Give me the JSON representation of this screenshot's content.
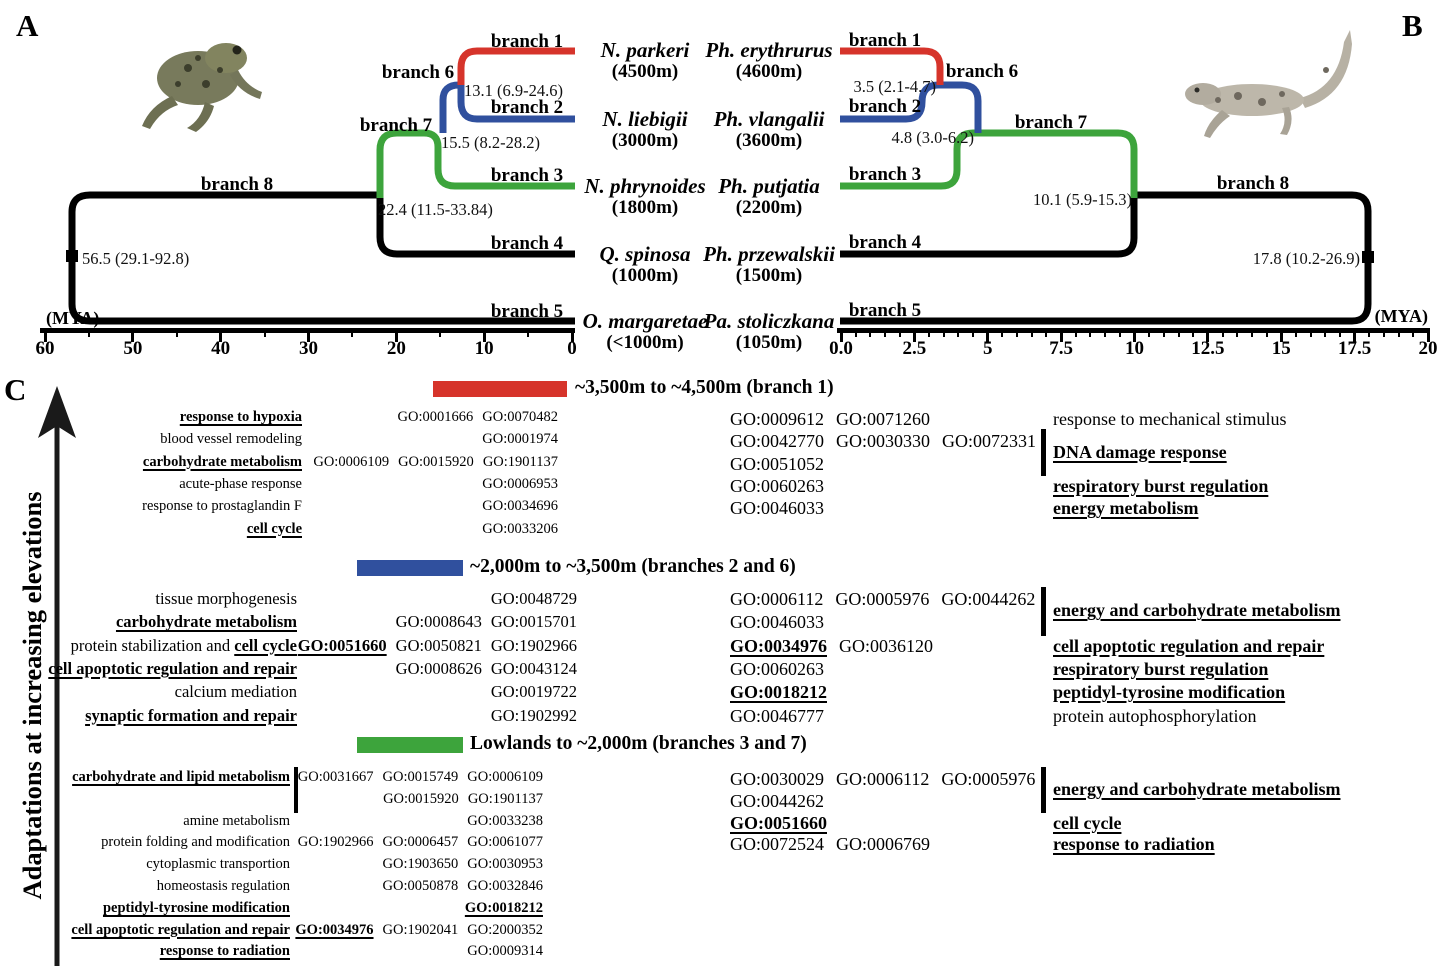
{
  "colors": {
    "red": "#d6342b",
    "blue": "#30509e",
    "green": "#3da43c",
    "black": "#000000"
  },
  "panelA": {
    "label": "A",
    "animal": "frog-illustration",
    "species": [
      {
        "name": "N. parkeri",
        "elevation": "(4500m)"
      },
      {
        "name": "N. liebigii",
        "elevation": "(3000m)"
      },
      {
        "name": "N. phrynoides",
        "elevation": "(1800m)"
      },
      {
        "name": "Q. spinosa",
        "elevation": "(1000m)"
      },
      {
        "name": "O. margaretae",
        "elevation": "(<1000m)"
      }
    ],
    "branches": [
      "branch 1",
      "branch 2",
      "branch 3",
      "branch 4",
      "branch 5",
      "branch 6",
      "branch 7",
      "branch 8"
    ],
    "node_ages": [
      "13.1 (6.9-24.6)",
      "15.5 (8.2-28.2)",
      "22.4 (11.5-33.84)",
      "56.5 (29.1-92.8)"
    ],
    "axis": {
      "unit": "(MYA)",
      "ticks": [
        "60",
        "50",
        "40",
        "30",
        "20",
        "10",
        "0"
      ]
    }
  },
  "panelB": {
    "label": "B",
    "animal": "lizard-illustration",
    "species": [
      {
        "name": "Ph. erythrurus",
        "elevation": "(4600m)"
      },
      {
        "name": "Ph. vlangalii",
        "elevation": "(3600m)"
      },
      {
        "name": "Ph. putjatia",
        "elevation": "(2200m)"
      },
      {
        "name": "Ph. przewalskii",
        "elevation": "(1500m)"
      },
      {
        "name": "Pa. stoliczkana",
        "elevation": "(1050m)"
      }
    ],
    "branches": [
      "branch 1",
      "branch 2",
      "branch 3",
      "branch 4",
      "branch 5",
      "branch 6",
      "branch 7",
      "branch 8"
    ],
    "node_ages": [
      "3.5 (2.1-4.7)",
      "4.8 (3.0-6.2)",
      "10.1 (5.9-15.3)",
      "17.8 (10.2-26.9)"
    ],
    "axis": {
      "unit": "(MYA)",
      "ticks": [
        "0.0",
        "2.5",
        "5",
        "7.5",
        "10",
        "12.5",
        "15",
        "17.5",
        "20"
      ]
    }
  },
  "panelC": {
    "label": "C",
    "y_axis_label": "Adaptations at increasing elevations",
    "sections": [
      {
        "color": "#d6342b",
        "title": "~3,500m to ~4,500m (branch 1)",
        "right_bracket": {
          "label": [
            {
              "t": "DNA damage response",
              "e": 1
            }
          ],
          "start_row": 1,
          "span": 2
        },
        "rows": [
          {
            "label": [
              {
                "t": "response to hypoxia",
                "e": 1
              }
            ],
            "go_left": [
              {
                "t": "GO:0001666",
                "e": 0
              },
              {
                "t": "GO:0070482",
                "e": 0
              }
            ],
            "go_right": [
              {
                "t": "GO:0009612",
                "e": 0
              },
              {
                "t": "GO:0071260",
                "e": 0
              }
            ],
            "right_label": [
              {
                "t": "response to mechanical stimulus",
                "e": 0
              }
            ]
          },
          {
            "label": [
              {
                "t": "blood vessel remodeling",
                "e": 0
              }
            ],
            "go_left": [
              {
                "t": "GO:0001974",
                "e": 0
              }
            ],
            "go_right": [
              {
                "t": "GO:0042770",
                "e": 0
              },
              {
                "t": "GO:0030330",
                "e": 0
              },
              {
                "t": "GO:0072331",
                "e": 0
              }
            ]
          },
          {
            "label": [
              {
                "t": "carbohydrate metabolism",
                "e": 1
              }
            ],
            "go_left": [
              {
                "t": "GO:0006109",
                "e": 0
              },
              {
                "t": "GO:0015920",
                "e": 0
              },
              {
                "t": "GO:1901137",
                "e": 0
              }
            ],
            "go_right": [
              {
                "t": "GO:0051052",
                "e": 0
              }
            ]
          },
          {
            "label": [
              {
                "t": "acute-phase response",
                "e": 0
              }
            ],
            "go_left": [
              {
                "t": "GO:0006953",
                "e": 0
              }
            ],
            "go_right": [
              {
                "t": "GO:0060263",
                "e": 0
              }
            ],
            "right_label": [
              {
                "t": "respiratory burst regulation",
                "e": 1
              }
            ]
          },
          {
            "label": [
              {
                "t": "response to prostaglandin F",
                "e": 0
              }
            ],
            "go_left": [
              {
                "t": "GO:0034696",
                "e": 0
              }
            ],
            "go_right": [
              {
                "t": "GO:0046033",
                "e": 0
              }
            ],
            "right_label": [
              {
                "t": "energy metabolism",
                "e": 1
              }
            ]
          },
          {
            "label": [
              {
                "t": "cell cycle",
                "e": 1
              }
            ],
            "go_left": [
              {
                "t": "GO:0033206",
                "e": 0
              }
            ]
          }
        ]
      },
      {
        "color": "#30509e",
        "title": "~2,000m to ~3,500m (branches 2 and 6)",
        "right_bracket": {
          "label": [
            {
              "t": "energy and carbohydrate metabolism",
              "e": 1
            }
          ],
          "start_row": 0,
          "span": 2
        },
        "rows": [
          {
            "label": [
              {
                "t": "tissue morphogenesis",
                "e": 0
              }
            ],
            "go_left": [
              {
                "t": "GO:0048729",
                "e": 0
              }
            ],
            "go_right": [
              {
                "t": "GO:0006112",
                "e": 0
              },
              {
                "t": "GO:0005976",
                "e": 0
              },
              {
                "t": "GO:0044262",
                "e": 0
              }
            ]
          },
          {
            "label": [
              {
                "t": "carbohydrate metabolism",
                "e": 1
              }
            ],
            "go_left": [
              {
                "t": "GO:0008643",
                "e": 0
              },
              {
                "t": "GO:0015701",
                "e": 0
              }
            ],
            "go_right": [
              {
                "t": "GO:0046033",
                "e": 0
              }
            ]
          },
          {
            "label": [
              {
                "t": "protein stabilization and ",
                "e": 0
              },
              {
                "t": "cell cycle",
                "e": 1
              }
            ],
            "go_left": [
              {
                "t": "GO:0051660",
                "e": 1
              },
              {
                "t": "GO:0050821",
                "e": 0
              },
              {
                "t": "GO:1902966",
                "e": 0
              }
            ],
            "go_right": [
              {
                "t": "GO:0034976",
                "e": 1
              },
              {
                "t": "GO:0036120",
                "e": 0
              }
            ],
            "right_label": [
              {
                "t": "cell apoptotic regulation and repair",
                "e": 1
              }
            ]
          },
          {
            "label": [
              {
                "t": "cell apoptotic regulation and repair",
                "e": 1
              }
            ],
            "go_left": [
              {
                "t": "GO:0008626",
                "e": 0
              },
              {
                "t": "GO:0043124",
                "e": 0
              }
            ],
            "go_right": [
              {
                "t": "GO:0060263",
                "e": 0
              }
            ],
            "right_label": [
              {
                "t": "respiratory burst regulation",
                "e": 1
              }
            ]
          },
          {
            "label": [
              {
                "t": "calcium mediation",
                "e": 0
              }
            ],
            "go_left": [
              {
                "t": "GO:0019722",
                "e": 0
              }
            ],
            "go_right": [
              {
                "t": "GO:0018212",
                "e": 1
              }
            ],
            "right_label": [
              {
                "t": "peptidyl-tyrosine modification",
                "e": 1
              }
            ]
          },
          {
            "label": [
              {
                "t": "synaptic formation and repair",
                "e": 1
              }
            ],
            "go_left": [
              {
                "t": "GO:1902992",
                "e": 0
              }
            ],
            "go_right": [
              {
                "t": "GO:0046777",
                "e": 0
              }
            ],
            "right_label": [
              {
                "t": "protein autophosphorylation",
                "e": 0
              }
            ]
          }
        ]
      },
      {
        "color": "#3da43c",
        "title": "Lowlands to ~2,000m (branches 3 and 7)",
        "right_bracket": {
          "label": [
            {
              "t": "energy and carbohydrate metabolism",
              "e": 1
            }
          ],
          "start_row": 0,
          "span": 2
        },
        "left_bracket": {
          "start_row": 0,
          "span": 2
        },
        "rows": [
          {
            "label": [
              {
                "t": "carbohydrate and lipid metabolism",
                "e": 1
              }
            ],
            "go_left": [
              {
                "t": "GO:0031667",
                "e": 0
              },
              {
                "t": "GO:0015749",
                "e": 0
              },
              {
                "t": "GO:0006109",
                "e": 0
              }
            ],
            "go_right": [
              {
                "t": "GO:0030029",
                "e": 0
              },
              {
                "t": "GO:0006112",
                "e": 0
              },
              {
                "t": "GO:0005976",
                "e": 0
              }
            ]
          },
          {
            "label": [],
            "go_left": [
              {
                "t": "GO:0015920",
                "e": 0
              },
              {
                "t": "GO:1901137",
                "e": 0
              }
            ],
            "go_right": [
              {
                "t": "GO:0044262",
                "e": 0
              }
            ]
          },
          {
            "label": [
              {
                "t": "amine metabolism",
                "e": 0
              }
            ],
            "go_left": [
              {
                "t": "GO:0033238",
                "e": 0
              }
            ],
            "go_right": [
              {
                "t": "GO:0051660",
                "e": 1
              }
            ],
            "right_label": [
              {
                "t": "cell cycle",
                "e": 1
              }
            ]
          },
          {
            "label": [
              {
                "t": "protein folding and modification",
                "e": 0
              }
            ],
            "go_left": [
              {
                "t": "GO:1902966",
                "e": 0
              },
              {
                "t": "GO:0006457",
                "e": 0
              },
              {
                "t": "GO:0061077",
                "e": 0
              }
            ],
            "go_right": [
              {
                "t": "GO:0072524",
                "e": 0
              },
              {
                "t": "GO:0006769",
                "e": 0
              }
            ],
            "right_label": [
              {
                "t": "response to radiation",
                "e": 1
              }
            ]
          },
          {
            "label": [
              {
                "t": "cytoplasmic transportion",
                "e": 0
              }
            ],
            "go_left": [
              {
                "t": "GO:1903650",
                "e": 0
              },
              {
                "t": "GO:0030953",
                "e": 0
              }
            ]
          },
          {
            "label": [
              {
                "t": "homeostasis regulation",
                "e": 0
              }
            ],
            "go_left": [
              {
                "t": "GO:0050878",
                "e": 0
              },
              {
                "t": "GO:0032846",
                "e": 0
              }
            ]
          },
          {
            "label": [
              {
                "t": "peptidyl-tyrosine modification",
                "e": 1
              }
            ],
            "go_left": [
              {
                "t": "GO:0018212",
                "e": 1
              }
            ]
          },
          {
            "label": [
              {
                "t": "cell apoptotic regulation and repair",
                "e": 1
              }
            ],
            "go_left": [
              {
                "t": "GO:0034976",
                "e": 1
              },
              {
                "t": "GO:1902041",
                "e": 0
              },
              {
                "t": "GO:2000352",
                "e": 0
              }
            ]
          },
          {
            "label": [
              {
                "t": "response to radiation",
                "e": 1
              }
            ],
            "go_left": [
              {
                "t": "GO:0009314",
                "e": 0
              }
            ]
          }
        ]
      }
    ]
  }
}
